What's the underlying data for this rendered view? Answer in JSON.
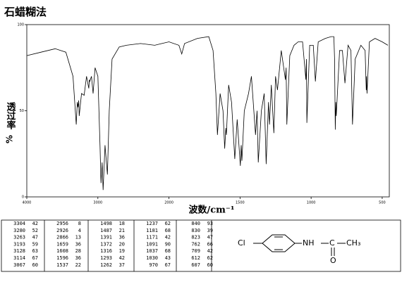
{
  "chart_data": {
    "type": "line",
    "title": "石蜡糊法",
    "y_label": "透过率",
    "y_unit": "%",
    "x_label": "波数/cm⁻¹",
    "color": "#000000",
    "grid": false,
    "xlim": [
      4000,
      450
    ],
    "xticks": [
      4000,
      3000,
      2000,
      1500,
      1000,
      500
    ],
    "ylim": [
      0,
      100
    ],
    "yticks": [
      0,
      50,
      100
    ],
    "x": [
      4000,
      3800,
      3600,
      3450,
      3350,
      3304,
      3290,
      3280,
      3270,
      3263,
      3230,
      3193,
      3160,
      3128,
      3120,
      3114,
      3090,
      3067,
      3040,
      3000,
      2970,
      2956,
      2940,
      2926,
      2900,
      2866,
      2840,
      2800,
      2700,
      2600,
      2400,
      2200,
      2100,
      2000,
      1930,
      1910,
      1890,
      1800,
      1720,
      1690,
      1670,
      1659,
      1640,
      1620,
      1608,
      1600,
      1596,
      1580,
      1560,
      1537,
      1520,
      1498,
      1492,
      1487,
      1470,
      1440,
      1420,
      1391,
      1380,
      1372,
      1350,
      1330,
      1316,
      1300,
      1293,
      1280,
      1262,
      1250,
      1237,
      1210,
      1181,
      1176,
      1171,
      1150,
      1120,
      1091,
      1060,
      1037,
      1033,
      1030,
      1010,
      985,
      970,
      950,
      900,
      860,
      840,
      835,
      830,
      826,
      823,
      800,
      780,
      762,
      740,
      720,
      709,
      690,
      650,
      620,
      612,
      610,
      607,
      590,
      550,
      500,
      460
    ],
    "values": [
      82,
      84,
      86,
      84,
      70,
      42,
      55,
      52,
      56,
      47,
      60,
      59,
      70,
      63,
      68,
      67,
      70,
      60,
      75,
      70,
      30,
      8,
      20,
      4,
      30,
      13,
      50,
      80,
      87,
      88,
      89,
      88,
      89,
      90,
      88,
      83,
      89,
      92,
      93,
      85,
      60,
      36,
      60,
      50,
      28,
      40,
      36,
      65,
      55,
      22,
      45,
      18,
      30,
      21,
      50,
      60,
      70,
      36,
      50,
      20,
      50,
      60,
      19,
      55,
      42,
      65,
      37,
      70,
      62,
      85,
      68,
      75,
      42,
      82,
      88,
      90,
      90,
      68,
      80,
      43,
      88,
      88,
      67,
      90,
      92,
      93,
      93,
      80,
      39,
      55,
      47,
      85,
      85,
      66,
      88,
      85,
      42,
      80,
      88,
      85,
      62,
      70,
      60,
      90,
      92,
      90,
      88
    ]
  },
  "table": {
    "columns": [
      [
        [
          "3304",
          "42"
        ],
        [
          "3280",
          "52"
        ],
        [
          "3263",
          "47"
        ],
        [
          "3193",
          "59"
        ],
        [
          "3128",
          "63"
        ],
        [
          "3114",
          "67"
        ],
        [
          "3067",
          "60"
        ]
      ],
      [
        [
          "2956",
          "8"
        ],
        [
          "2926",
          "4"
        ],
        [
          "2866",
          "13"
        ],
        [
          "1659",
          "36"
        ],
        [
          "1608",
          "28"
        ],
        [
          "1596",
          "36"
        ],
        [
          "1537",
          "22"
        ]
      ],
      [
        [
          "1498",
          "18"
        ],
        [
          "1487",
          "21"
        ],
        [
          "1391",
          "36"
        ],
        [
          "1372",
          "20"
        ],
        [
          "1316",
          "19"
        ],
        [
          "1293",
          "42"
        ],
        [
          "1262",
          "37"
        ]
      ],
      [
        [
          "1237",
          "62"
        ],
        [
          "1181",
          "68"
        ],
        [
          "1171",
          "42"
        ],
        [
          "1091",
          "90"
        ],
        [
          "1037",
          "68"
        ],
        [
          "1030",
          "43"
        ],
        [
          "970",
          "67"
        ]
      ],
      [
        [
          "840",
          "93"
        ],
        [
          "830",
          "39"
        ],
        [
          "823",
          "47"
        ],
        [
          "762",
          "66"
        ],
        [
          "709",
          "42"
        ],
        [
          "612",
          "62"
        ],
        [
          "607",
          "60"
        ]
      ]
    ]
  },
  "structure": {
    "cl": "Cl",
    "nh": "NH",
    "c": "C",
    "ch3": "CH₃",
    "o": "O"
  }
}
